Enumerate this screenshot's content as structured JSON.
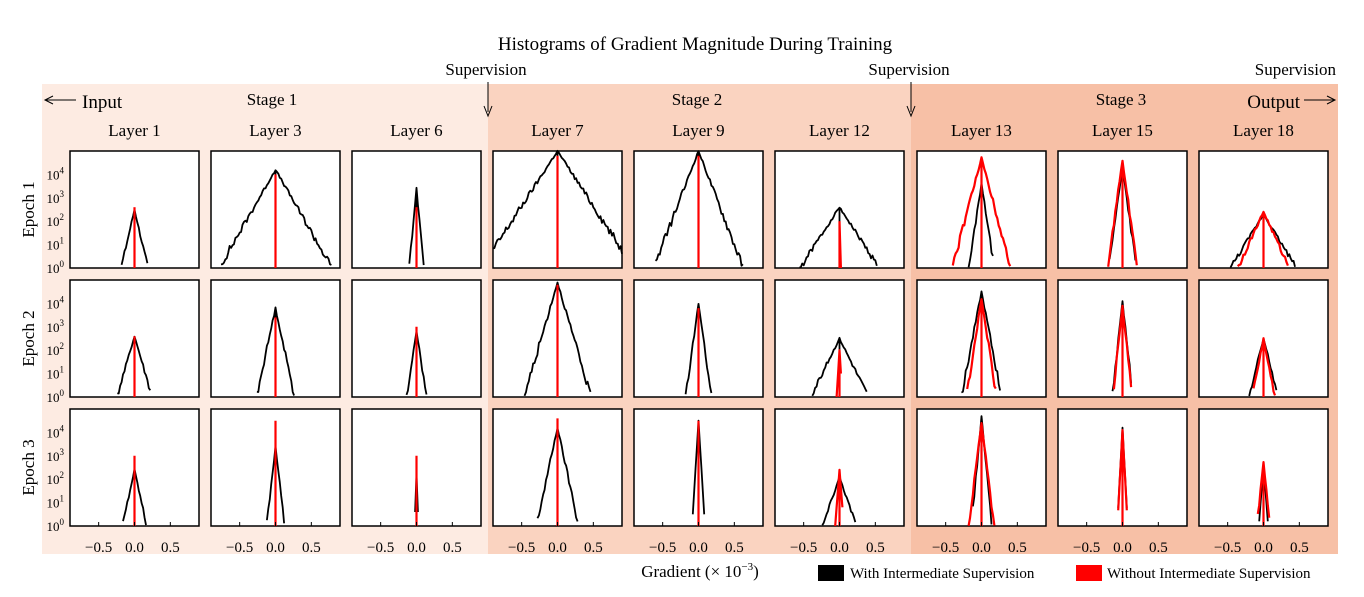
{
  "chart_data": {
    "type": "histogram-grid",
    "title": "Histograms of Gradient Magnitude During Training",
    "xlabel": "Gradient (× 10",
    "xlabel_exponent": "−3",
    "xlabel_close": ")",
    "ylabel_ticks": [
      "10",
      "10",
      "10",
      "10",
      "10"
    ],
    "ylabel_exponents": [
      "0",
      "1",
      "2",
      "3",
      "4"
    ],
    "y_scale": "log",
    "ylim": [
      1,
      100000
    ],
    "xlim": [
      -0.9,
      0.9
    ],
    "x_ticks": [
      "−0.5",
      "0.0",
      "0.5"
    ],
    "x_tick_values": [
      -0.5,
      0.0,
      0.5
    ],
    "rows": [
      "Epoch 1",
      "Epoch 2",
      "Epoch 3"
    ],
    "columns": [
      "Layer 1",
      "Layer 3",
      "Layer 6",
      "Layer 7",
      "Layer 9",
      "Layer 12",
      "Layer 13",
      "Layer 15",
      "Layer 18"
    ],
    "stages": [
      {
        "label": "Stage 1",
        "color": "#fdebe2"
      },
      {
        "label": "Stage 2",
        "color": "#fad3c0"
      },
      {
        "label": "Stage 3",
        "color": "#f7c0a6"
      }
    ],
    "markers": {
      "input": "Input",
      "output": "Output",
      "supervision": "Supervision"
    },
    "legend": [
      {
        "name": "With Intermediate Supervision",
        "color": "#000000"
      },
      {
        "name": "Without Intermediate Supervision",
        "color": "#ff0000"
      }
    ],
    "series_note_values": "peak count (log10) and approximate half-width of each distribution",
    "panels": [
      [
        {
          "black": {
            "peak": 2.5,
            "width": 0.3
          },
          "red": {
            "peak": 2.6,
            "width": 0.01
          }
        },
        {
          "black": {
            "peak": 4.2,
            "width": 0.75
          },
          "red": {
            "peak": 4.0,
            "width": 0.01
          }
        },
        {
          "black": {
            "peak": 3.4,
            "width": 0.12
          },
          "red": {
            "peak": 2.6,
            "width": 0.01
          }
        },
        {
          "black": {
            "peak": 5.0,
            "width": 0.85
          },
          "red": {
            "peak": 4.8,
            "width": 0.01
          }
        },
        {
          "black": {
            "peak": 5.0,
            "width": 0.5
          },
          "red": {
            "peak": 4.8,
            "width": 0.01
          }
        },
        {
          "black": {
            "peak": 2.6,
            "width": 0.85
          },
          "red": {
            "peak": 2.0,
            "width": 0.04
          }
        },
        {
          "black": {
            "peak": 3.6,
            "width": 0.2
          },
          "red": {
            "peak": 4.7,
            "width": 0.35
          }
        },
        {
          "black": {
            "peak": 4.3,
            "width": 0.18
          },
          "red": {
            "peak": 4.6,
            "width": 0.18
          }
        },
        {
          "black": {
            "peak": 2.3,
            "width": 0.8
          },
          "red": {
            "peak": 2.4,
            "width": 0.6
          }
        }
      ],
      [
        {
          "black": {
            "peak": 2.6,
            "width": 0.38
          },
          "red": {
            "peak": 2.6,
            "width": 0.01
          }
        },
        {
          "black": {
            "peak": 3.8,
            "width": 0.28
          },
          "red": {
            "peak": 3.4,
            "width": 0.01
          }
        },
        {
          "black": {
            "peak": 2.8,
            "width": 0.2
          },
          "red": {
            "peak": 3.0,
            "width": 0.01
          }
        },
        {
          "black": {
            "peak": 4.9,
            "width": 0.38
          },
          "red": {
            "peak": 4.8,
            "width": 0.01
          }
        },
        {
          "black": {
            "peak": 4.0,
            "width": 0.18
          },
          "red": {
            "peak": 3.8,
            "width": 0.01
          }
        },
        {
          "black": {
            "peak": 2.5,
            "width": 0.65
          },
          "red": {
            "peak": 2.0,
            "width": 0.08
          }
        },
        {
          "black": {
            "peak": 4.5,
            "width": 0.25
          },
          "red": {
            "peak": 4.2,
            "width": 0.2
          }
        },
        {
          "black": {
            "peak": 4.1,
            "width": 0.14
          },
          "red": {
            "peak": 3.9,
            "width": 0.14
          }
        },
        {
          "black": {
            "peak": 2.5,
            "width": 0.33
          },
          "red": {
            "peak": 2.5,
            "width": 0.25
          }
        }
      ],
      [
        {
          "black": {
            "peak": 2.4,
            "width": 0.28
          },
          "red": {
            "peak": 3.0,
            "width": 0.01
          }
        },
        {
          "black": {
            "peak": 3.4,
            "width": 0.15
          },
          "red": {
            "peak": 4.5,
            "width": 0.01
          }
        },
        {
          "black": {
            "peak": 2.2,
            "width": 0.05
          },
          "red": {
            "peak": 3.0,
            "width": 0.01
          }
        },
        {
          "black": {
            "peak": 4.2,
            "width": 0.28
          },
          "red": {
            "peak": 4.6,
            "width": 0.01
          }
        },
        {
          "black": {
            "peak": 4.5,
            "width": 0.08
          },
          "red": {
            "peak": 4.5,
            "width": 0.01
          }
        },
        {
          "black": {
            "peak": 2.1,
            "width": 0.45
          },
          "red": {
            "peak": 2.4,
            "width": 0.1
          }
        },
        {
          "black": {
            "peak": 4.7,
            "width": 0.12
          },
          "red": {
            "peak": 4.4,
            "width": 0.16
          }
        },
        {
          "black": {
            "peak": 4.2,
            "width": 0.07
          },
          "red": {
            "peak": 4.1,
            "width": 0.07
          }
        },
        {
          "black": {
            "peak": 2.6,
            "width": 0.1
          },
          "red": {
            "peak": 2.7,
            "width": 0.14
          }
        }
      ]
    ]
  }
}
